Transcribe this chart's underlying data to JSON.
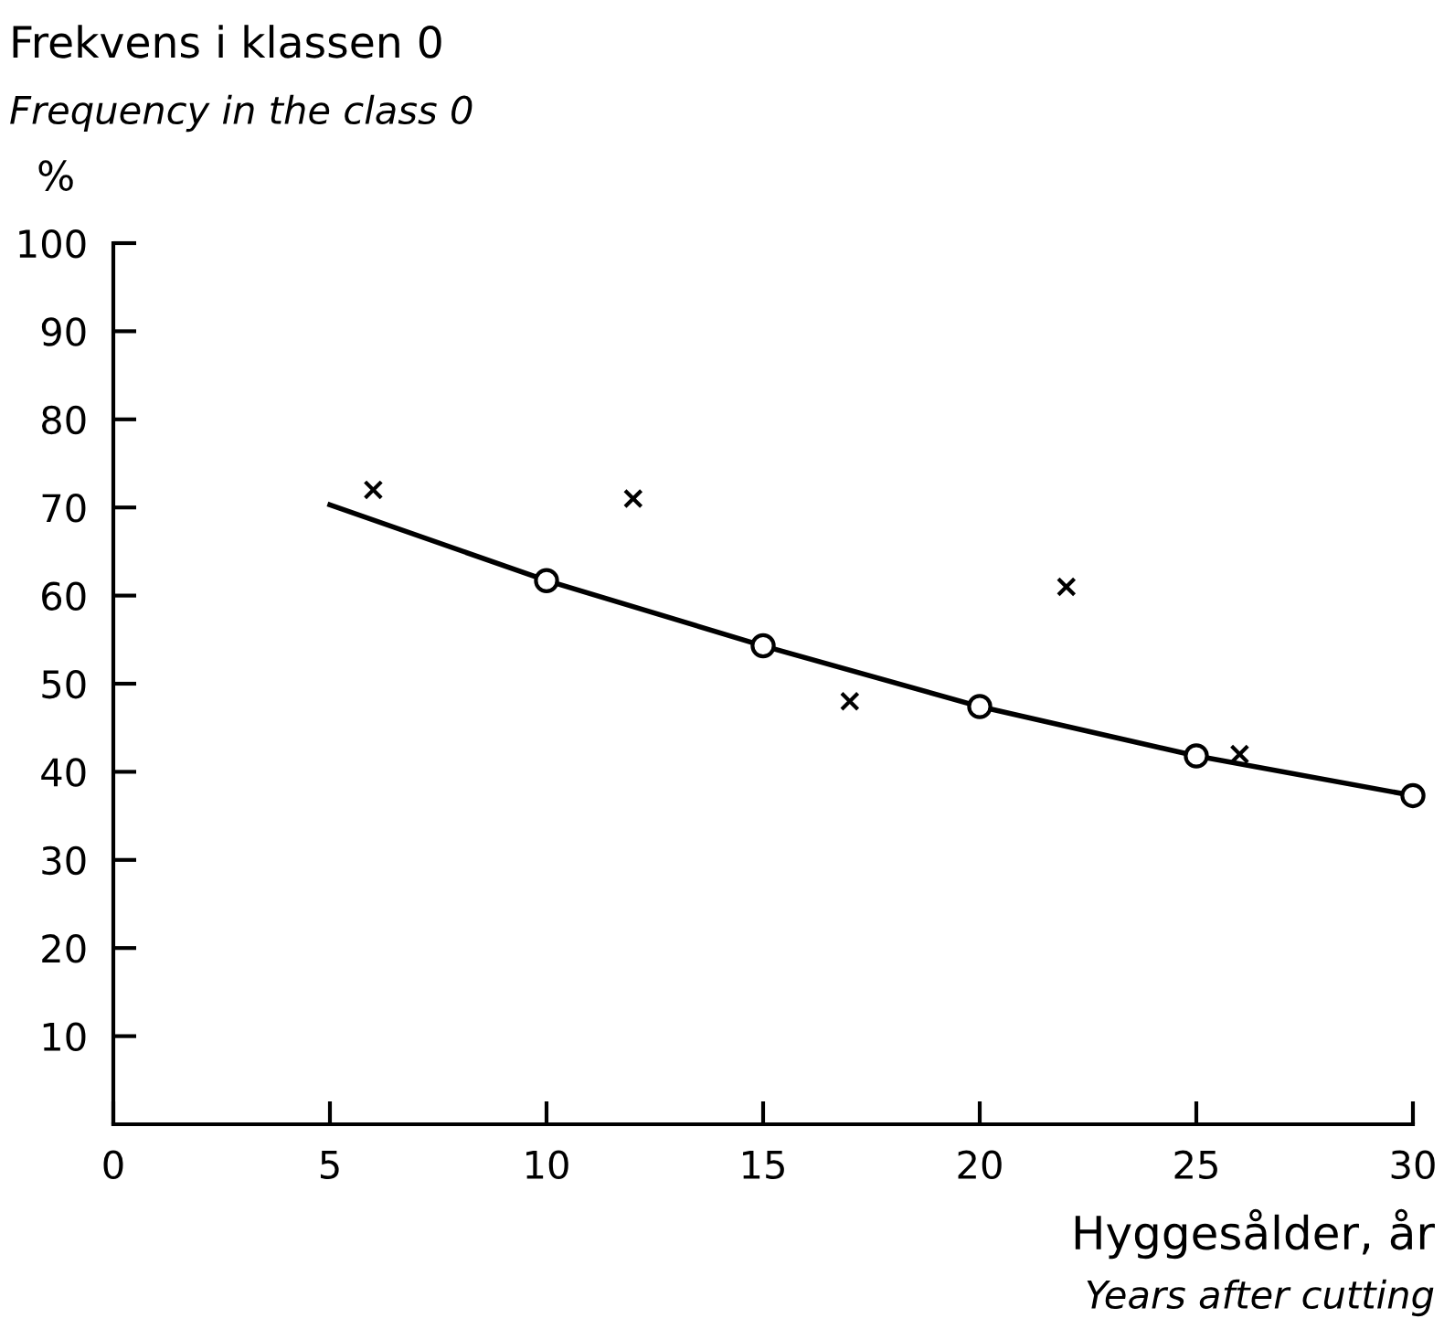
{
  "chart_data": {
    "type": "scatter",
    "title": "Frekvens i klassen 0",
    "subtitle": "Frequency in the class 0",
    "ylabel": "%",
    "xlabel": "Hyggesålder, år",
    "annotations": [
      "Years after cutting"
    ],
    "xlim": [
      0,
      30
    ],
    "xticks": [
      0,
      5,
      10,
      15,
      20,
      25,
      30
    ],
    "ylim": [
      0,
      100
    ],
    "yticks": [
      10,
      20,
      30,
      40,
      50,
      60,
      70,
      80,
      90,
      100
    ],
    "grid": false,
    "legend": false,
    "series": [
      {
        "marker": "cross",
        "color": "#000000",
        "x": [
          6,
          12,
          17,
          22,
          26
        ],
        "values": [
          72,
          71,
          48,
          61,
          42
        ]
      },
      {
        "type": "line",
        "marker": "none",
        "line_style": "solid",
        "color": "#000000",
        "x": [
          5,
          10,
          15,
          20,
          25,
          30
        ],
        "values": [
          70.3,
          61.7,
          54.3,
          47.4,
          41.8,
          37.3
        ]
      },
      {
        "marker": "circle",
        "color": "#000000",
        "x": [
          10,
          15,
          20,
          25,
          30
        ],
        "values": [
          61.7,
          54.3,
          47.4,
          41.8,
          37.3
        ]
      }
    ]
  }
}
